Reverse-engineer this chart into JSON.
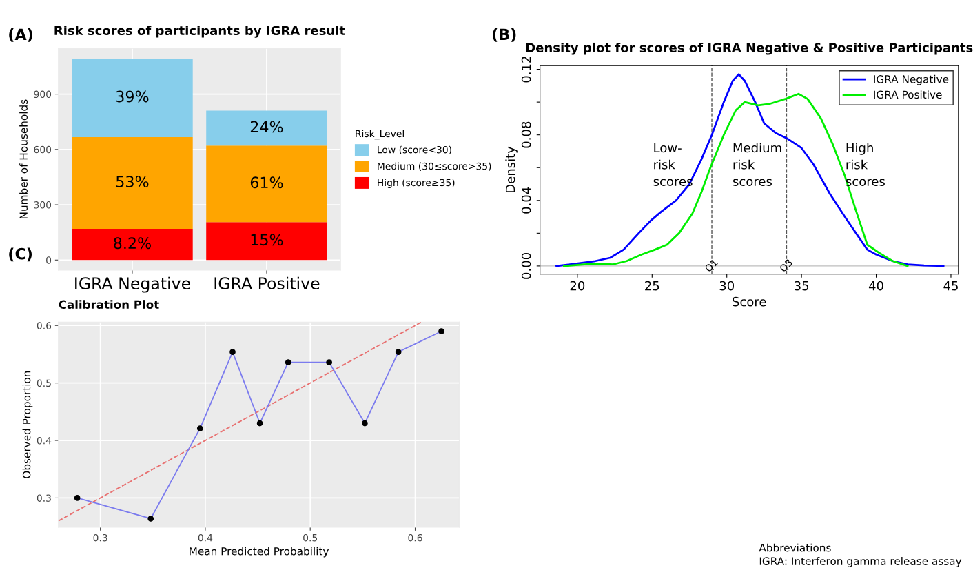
{
  "chart_data": [
    {
      "type": "bar",
      "title": "Risk scores of participants by IGRA result",
      "ylabel": "Number of Households",
      "legend_title": "Risk_Level",
      "annotations": [
        "(A)",
        "8.2%",
        "15%",
        "53%",
        "61%",
        "39%",
        "24%"
      ],
      "categories": [
        "IGRA Negative",
        "IGRA Positive"
      ],
      "stacked": true,
      "legend": "right",
      "grid": true,
      "series": [
        {
          "name": "High (score≥35)",
          "color": "#ff0000",
          "values": [
            169,
            206
          ]
        },
        {
          "name": "Medium (30≤score>35)",
          "color": "#ffa500",
          "values": [
            498,
            415
          ]
        },
        {
          "name": "Low (score<30)",
          "color": "#87ceeb",
          "values": [
            426,
            190
          ]
        }
      ],
      "ylim": [
        -55,
        1148
      ],
      "yticks": [
        0,
        300,
        600,
        900
      ]
    },
    {
      "type": "line",
      "title": "Density plot for scores of IGRA Negative & Positive Participants",
      "xlabel": "Score",
      "ylabel": "Density",
      "legend": "top right",
      "annotations": [
        "(B)",
        "Low-\nrisk\nscores",
        "Medium\nrisk\nscores",
        "High\nrisk\nscores",
        "Abbreviations\nIGRA: Interferon gamma release assay"
      ],
      "series": [
        {
          "name": "IGRA Negative",
          "color": "#0000ff",
          "x": [
            18.6,
            19.5,
            21.2,
            22.2,
            23.1,
            24.1,
            24.95,
            25.6,
            26.6,
            27.5,
            28.3,
            29.0,
            29.8,
            30.4,
            30.8,
            31.2,
            31.9,
            32.5,
            33.3,
            34.0,
            35.0,
            35.8,
            36.9,
            37.9,
            38.8,
            39.4,
            40.0,
            41.1,
            42.1,
            43.2,
            44.5
          ],
          "values": [
            0,
            0.001,
            0.003,
            0.005,
            0.01,
            0.02,
            0.028,
            0.033,
            0.04,
            0.05,
            0.065,
            0.08,
            0.1,
            0.113,
            0.117,
            0.113,
            0.1,
            0.087,
            0.081,
            0.078,
            0.072,
            0.062,
            0.044,
            0.03,
            0.018,
            0.01,
            0.007,
            0.003,
            0.001,
            0.0003,
            0
          ]
        },
        {
          "name": "IGRA Positive",
          "color": "#00ee00",
          "x": [
            19.1,
            21.2,
            22.4,
            23.3,
            24.3,
            25.2,
            26.0,
            26.8,
            27.7,
            28.3,
            28.9,
            29.8,
            30.6,
            31.2,
            32.1,
            32.9,
            33.95,
            34.8,
            35.4,
            36.3,
            37.1,
            37.9,
            38.6,
            39.4,
            40.2,
            41.1,
            42.1
          ],
          "values": [
            0,
            0.0015,
            0.001,
            0.003,
            0.007,
            0.01,
            0.013,
            0.02,
            0.032,
            0.045,
            0.06,
            0.08,
            0.095,
            0.1,
            0.098,
            0.099,
            0.102,
            0.105,
            0.102,
            0.09,
            0.074,
            0.055,
            0.035,
            0.013,
            0.008,
            0.003,
            0
          ]
        }
      ],
      "ref_lines": [
        {
          "axis": "x",
          "value": 29,
          "label": "Q1",
          "color": "#555555",
          "line_style": "dashed"
        },
        {
          "axis": "x",
          "value": 34,
          "label": "Q3",
          "color": "#555555",
          "line_style": "dashed"
        },
        {
          "axis": "y",
          "value": 0,
          "label": null,
          "color": "#bebebe",
          "line_style": "solid"
        }
      ],
      "xlim": [
        17.5,
        45.5
      ],
      "xticks": [
        20,
        25,
        30,
        35,
        40,
        45
      ],
      "ylim": [
        -0.005,
        0.1223
      ],
      "yticks": [
        {
          "value": 0,
          "label": "0.00"
        },
        {
          "value": 0.02,
          "label": null
        },
        {
          "value": 0.04,
          "label": "0.04"
        },
        {
          "value": 0.06,
          "label": null
        },
        {
          "value": 0.08,
          "label": "0.08"
        },
        {
          "value": 0.1,
          "label": null
        },
        {
          "value": 0.12,
          "label": "0.12"
        }
      ]
    },
    {
      "type": "line",
      "title": "Calibration Plot",
      "xlabel": "Mean Predicted Probability",
      "ylabel": "Observed Proportion",
      "annotations": [
        "(C)"
      ],
      "grid": true,
      "series": [
        {
          "type": "line",
          "color": "#e87070",
          "line_style": "dashed",
          "x": [
            0.26,
            0.606
          ],
          "values": [
            0.26,
            0.606
          ]
        },
        {
          "type": "line",
          "color": "#7b7bee",
          "x": [
            0.278,
            0.348,
            0.395,
            0.426,
            0.452,
            0.479,
            0.518,
            0.552,
            0.584,
            0.625
          ],
          "values": [
            0.3,
            0.264,
            0.421,
            0.554,
            0.43,
            0.536,
            0.536,
            0.43,
            0.554,
            0.59
          ]
        },
        {
          "type": "scatter",
          "color": "#000000",
          "marker": "circle",
          "x": [
            0.278,
            0.348,
            0.395,
            0.426,
            0.452,
            0.479,
            0.518,
            0.552,
            0.584,
            0.625
          ],
          "values": [
            0.3,
            0.264,
            0.421,
            0.554,
            0.43,
            0.536,
            0.536,
            0.43,
            0.554,
            0.59
          ]
        }
      ],
      "xlim": [
        0.26,
        0.642
      ],
      "xticks": [
        0.3,
        0.4,
        0.5,
        0.6
      ],
      "ylim": [
        0.249,
        0.606
      ],
      "yticks": [
        0.3,
        0.4,
        0.5,
        0.6
      ]
    }
  ]
}
